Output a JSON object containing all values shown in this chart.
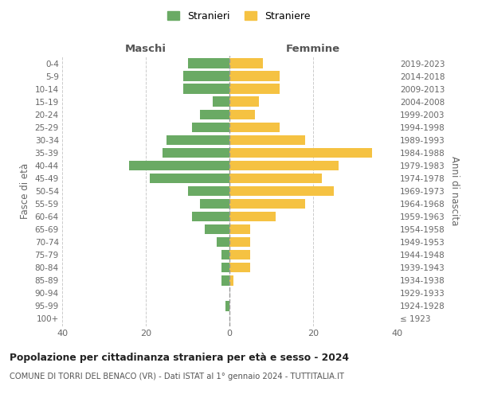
{
  "age_groups": [
    "100+",
    "95-99",
    "90-94",
    "85-89",
    "80-84",
    "75-79",
    "70-74",
    "65-69",
    "60-64",
    "55-59",
    "50-54",
    "45-49",
    "40-44",
    "35-39",
    "30-34",
    "25-29",
    "20-24",
    "15-19",
    "10-14",
    "5-9",
    "0-4"
  ],
  "birth_years": [
    "≤ 1923",
    "1924-1928",
    "1929-1933",
    "1934-1938",
    "1939-1943",
    "1944-1948",
    "1949-1953",
    "1954-1958",
    "1959-1963",
    "1964-1968",
    "1969-1973",
    "1974-1978",
    "1979-1983",
    "1984-1988",
    "1989-1993",
    "1994-1998",
    "1999-2003",
    "2004-2008",
    "2009-2013",
    "2014-2018",
    "2019-2023"
  ],
  "maschi": [
    0,
    1,
    0,
    2,
    2,
    2,
    3,
    6,
    9,
    7,
    10,
    19,
    24,
    16,
    15,
    9,
    7,
    4,
    11,
    11,
    10
  ],
  "femmine": [
    0,
    0,
    0,
    1,
    5,
    5,
    5,
    5,
    11,
    18,
    25,
    22,
    26,
    34,
    18,
    12,
    6,
    7,
    12,
    12,
    8
  ],
  "color_maschi": "#6aaa64",
  "color_femmine": "#f5c242",
  "title": "Popolazione per cittadinanza straniera per età e sesso - 2024",
  "subtitle": "COMUNE DI TORRI DEL BENACO (VR) - Dati ISTAT al 1° gennaio 2024 - TUTTITALIA.IT",
  "ylabel_left": "Fasce di età",
  "ylabel_right": "Anni di nascita",
  "xlabel_maschi": "Maschi",
  "xlabel_femmine": "Femmine",
  "legend_maschi": "Stranieri",
  "legend_femmine": "Straniere",
  "xlim": 40,
  "background_color": "#ffffff",
  "grid_color": "#cccccc"
}
